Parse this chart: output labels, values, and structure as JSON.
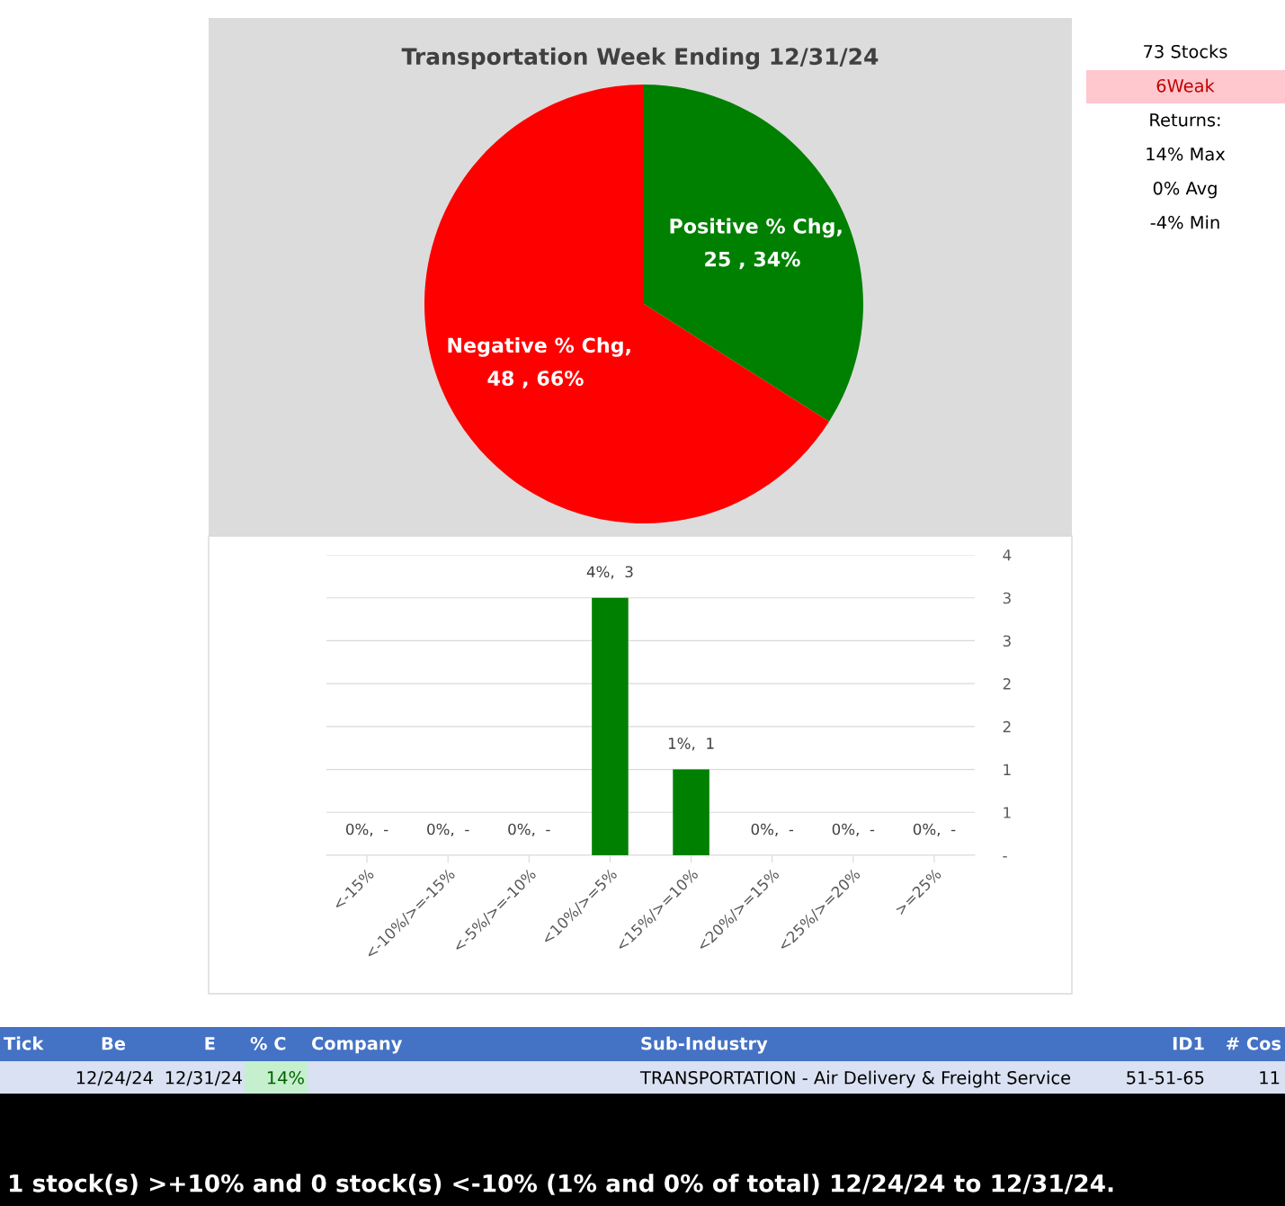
{
  "chart_data": [
    {
      "type": "pie",
      "title": "Transportation Week Ending 12/31/24",
      "categories": [
        "Positive % Chg",
        "Negative % Chg"
      ],
      "values": [
        34,
        66
      ],
      "value_labels": [
        ", 25 , 34%",
        ", 48 , 66%"
      ],
      "colors": [
        "#008000",
        "#ff0000"
      ],
      "legend": false
    },
    {
      "type": "bar",
      "categories": [
        "<-15%",
        "<-10%/>=-15%",
        "<-5%/>=-10%",
        "<10%/>=5%",
        "<15%/>=10%",
        "<20%/>=15%",
        "<25%/>=20%",
        ">=25%"
      ],
      "values": [
        0,
        0,
        0,
        3,
        1,
        0,
        0,
        0
      ],
      "color": "#008000",
      "value_labels": [
        "0%,  -",
        "0%,  -",
        "0%,  -",
        "4%,  3",
        "1%,  1",
        "0%,  -",
        "0%,  -",
        "0%,  -"
      ],
      "ylim": [
        0,
        3.5
      ],
      "yticks": [
        {
          "value": 0,
          "label": "-"
        },
        {
          "value": 0.5,
          "label": "1"
        },
        {
          "value": 1,
          "label": "1"
        },
        {
          "value": 1.5,
          "label": "2"
        },
        {
          "value": 2,
          "label": "2"
        },
        {
          "value": 2.5,
          "label": "3"
        },
        {
          "value": 3,
          "label": "3"
        },
        {
          "value": 3.5,
          "label": "4"
        }
      ],
      "grid": "y",
      "legend": false
    },
    {
      "type": "other",
      "annotations": [
        "73 Stocks",
        "6Weak",
        "Returns:",
        "14% Max",
        "0% Avg",
        "-4% Min"
      ]
    },
    {
      "type": "other",
      "categories": [
        "Tick",
        "Be",
        "E",
        "% C",
        "Company",
        "Sub-Industry",
        "ID1",
        "# Cos"
      ],
      "annotations": [
        "12/24/24",
        "12/31/24",
        "14%",
        "TRANSPORTATION - Air Delivery & Freight Service",
        "51-51-65",
        "11",
        "1 stock(s) >+10% and 0 stock(s) <-10% (1% and 0% of total) 12/24/24 to 12/31/24."
      ]
    }
  ]
}
